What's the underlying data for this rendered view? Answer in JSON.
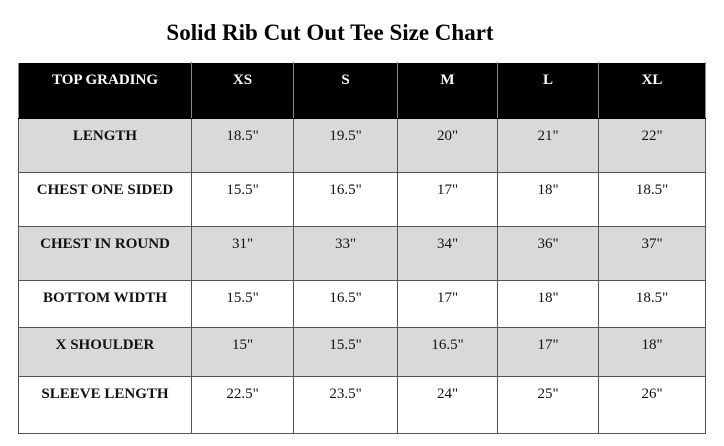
{
  "header": {
    "title": "Solid Rib Cut Out Tee Size Chart"
  },
  "table": {
    "columns": [
      "TOP GRADING",
      "XS",
      "S",
      "M",
      "L",
      "XL"
    ],
    "rows": [
      [
        "LENGTH",
        "18.5\"",
        "19.5\"",
        "20\"",
        "21\"",
        "22\""
      ],
      [
        "CHEST ONE SIDED",
        "15.5\"",
        "16.5\"",
        "17\"",
        "18\"",
        "18.5\""
      ],
      [
        "CHEST IN ROUND",
        "31\"",
        "33\"",
        "34\"",
        "36\"",
        "37\""
      ],
      [
        "BOTTOM WIDTH",
        "15.5\"",
        "16.5\"",
        "17\"",
        "18\"",
        "18.5\""
      ],
      [
        "X SHOULDER",
        "15\"",
        "15.5\"",
        "16.5\"",
        "17\"",
        "18\""
      ],
      [
        "SLEEVE LENGTH",
        "22.5\"",
        "23.5\"",
        "24\"",
        "25\"",
        "26\""
      ]
    ]
  }
}
